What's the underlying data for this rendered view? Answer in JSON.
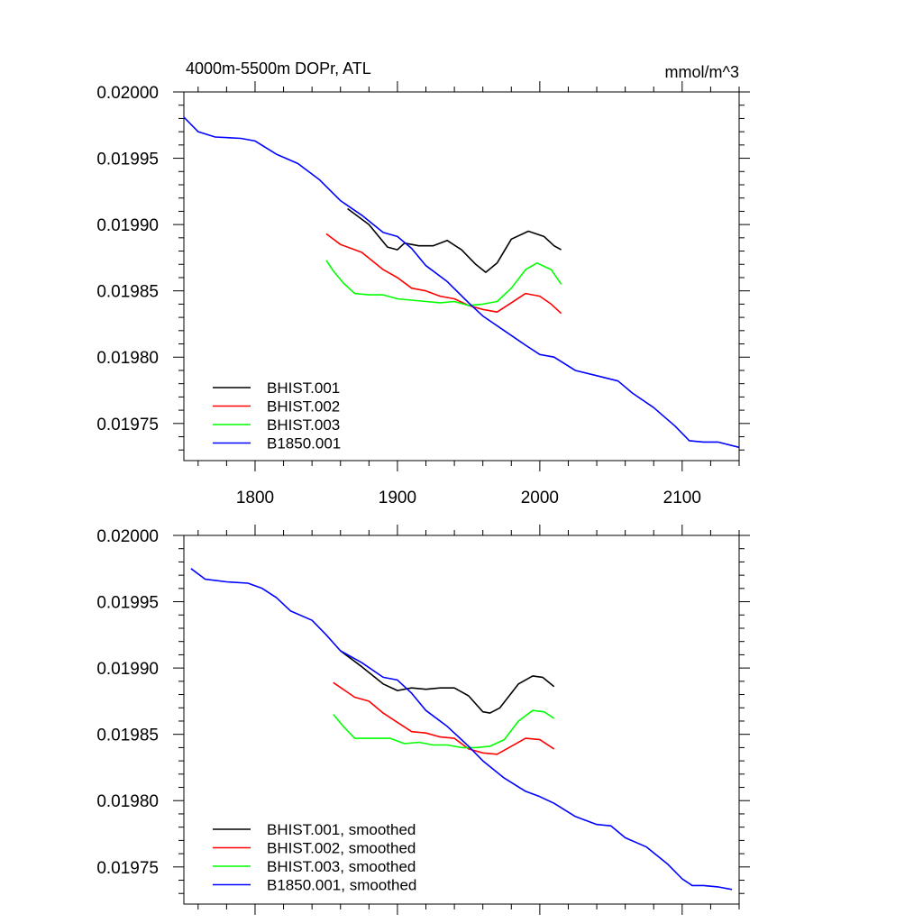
{
  "chart_data": [
    {
      "type": "line",
      "title_left": "4000m-5500m DOPr, ATL",
      "title_right": "mmol/m^3",
      "xlim": [
        1750,
        2140
      ],
      "ylim": [
        0.019722,
        0.02
      ],
      "x_ticks": [
        1800,
        1900,
        2000,
        2100
      ],
      "x_tick_labels": [
        "1800",
        "1900",
        "2000",
        "2100"
      ],
      "y_ticks": [
        0.02,
        0.01995,
        0.0199,
        0.01985,
        0.0198,
        0.01975
      ],
      "y_tick_labels": [
        "0.02000",
        "0.01995",
        "0.01990",
        "0.01985",
        "0.01980",
        "0.01975"
      ],
      "legend_position": "bottom-left",
      "series": [
        {
          "name": "BHIST.001",
          "color": "#000000",
          "points": [
            [
              1865,
              0.019912
            ],
            [
              1880,
              0.0199
            ],
            [
              1893,
              0.019883
            ],
            [
              1900,
              0.019881
            ],
            [
              1905,
              0.019886
            ],
            [
              1915,
              0.019884
            ],
            [
              1925,
              0.019884
            ],
            [
              1935,
              0.019888
            ],
            [
              1945,
              0.019881
            ],
            [
              1955,
              0.01987
            ],
            [
              1962,
              0.019864
            ],
            [
              1970,
              0.019871
            ],
            [
              1980,
              0.019889
            ],
            [
              1992,
              0.019895
            ],
            [
              2003,
              0.019891
            ],
            [
              2010,
              0.019884
            ],
            [
              2015,
              0.019881
            ]
          ]
        },
        {
          "name": "BHIST.002",
          "color": "#ff0000",
          "points": [
            [
              1850,
              0.019893
            ],
            [
              1860,
              0.019885
            ],
            [
              1875,
              0.019879
            ],
            [
              1890,
              0.019866
            ],
            [
              1900,
              0.01986
            ],
            [
              1910,
              0.019852
            ],
            [
              1920,
              0.01985
            ],
            [
              1930,
              0.019846
            ],
            [
              1940,
              0.019844
            ],
            [
              1950,
              0.019839
            ],
            [
              1960,
              0.019836
            ],
            [
              1970,
              0.019834
            ],
            [
              1980,
              0.019841
            ],
            [
              1990,
              0.019848
            ],
            [
              2000,
              0.019846
            ],
            [
              2008,
              0.01984
            ],
            [
              2015,
              0.019833
            ]
          ]
        },
        {
          "name": "BHIST.003",
          "color": "#00ff00",
          "points": [
            [
              1850,
              0.019873
            ],
            [
              1855,
              0.019865
            ],
            [
              1862,
              0.019856
            ],
            [
              1870,
              0.019848
            ],
            [
              1880,
              0.019847
            ],
            [
              1890,
              0.019847
            ],
            [
              1900,
              0.019844
            ],
            [
              1910,
              0.019843
            ],
            [
              1920,
              0.019842
            ],
            [
              1930,
              0.019841
            ],
            [
              1940,
              0.019842
            ],
            [
              1950,
              0.019839
            ],
            [
              1960,
              0.01984
            ],
            [
              1970,
              0.019842
            ],
            [
              1980,
              0.019852
            ],
            [
              1990,
              0.019866
            ],
            [
              1998,
              0.019871
            ],
            [
              2008,
              0.019866
            ],
            [
              2015,
              0.019855
            ]
          ]
        },
        {
          "name": "B1850.001",
          "color": "#0000ff",
          "points": [
            [
              1750,
              0.019981
            ],
            [
              1760,
              0.01997
            ],
            [
              1772,
              0.019966
            ],
            [
              1790,
              0.019965
            ],
            [
              1800,
              0.019963
            ],
            [
              1815,
              0.019953
            ],
            [
              1830,
              0.019946
            ],
            [
              1845,
              0.019934
            ],
            [
              1860,
              0.019918
            ],
            [
              1875,
              0.019907
            ],
            [
              1890,
              0.019894
            ],
            [
              1900,
              0.019891
            ],
            [
              1910,
              0.019882
            ],
            [
              1920,
              0.019869
            ],
            [
              1935,
              0.019857
            ],
            [
              1950,
              0.019841
            ],
            [
              1960,
              0.019831
            ],
            [
              1975,
              0.01982
            ],
            [
              1990,
              0.019809
            ],
            [
              2000,
              0.019802
            ],
            [
              2010,
              0.0198
            ],
            [
              2025,
              0.01979
            ],
            [
              2040,
              0.019786
            ],
            [
              2055,
              0.019782
            ],
            [
              2065,
              0.019773
            ],
            [
              2080,
              0.019762
            ],
            [
              2095,
              0.019748
            ],
            [
              2105,
              0.019737
            ],
            [
              2115,
              0.019736
            ],
            [
              2125,
              0.019736
            ],
            [
              2140,
              0.019732
            ]
          ]
        }
      ]
    },
    {
      "type": "line",
      "xlim": [
        1750,
        2140
      ],
      "ylim": [
        0.019722,
        0.02
      ],
      "x_ticks": [
        1800,
        1900,
        2000,
        2100
      ],
      "y_ticks": [
        0.02,
        0.01995,
        0.0199,
        0.01985,
        0.0198,
        0.01975
      ],
      "y_tick_labels": [
        "0.02000",
        "0.01995",
        "0.01990",
        "0.01985",
        "0.01980",
        "0.01975"
      ],
      "legend_position": "bottom-left",
      "series": [
        {
          "name": "BHIST.001, smoothed",
          "color": "#000000",
          "points": [
            [
              1860,
              0.019913
            ],
            [
              1875,
              0.019901
            ],
            [
              1890,
              0.019888
            ],
            [
              1900,
              0.019883
            ],
            [
              1910,
              0.019885
            ],
            [
              1920,
              0.019884
            ],
            [
              1930,
              0.019885
            ],
            [
              1940,
              0.019885
            ],
            [
              1950,
              0.019879
            ],
            [
              1960,
              0.019867
            ],
            [
              1965,
              0.019866
            ],
            [
              1972,
              0.01987
            ],
            [
              1985,
              0.019888
            ],
            [
              1995,
              0.019894
            ],
            [
              2002,
              0.019893
            ],
            [
              2010,
              0.019886
            ]
          ]
        },
        {
          "name": "BHIST.002, smoothed",
          "color": "#ff0000",
          "points": [
            [
              1855,
              0.019889
            ],
            [
              1870,
              0.019878
            ],
            [
              1880,
              0.019875
            ],
            [
              1890,
              0.019866
            ],
            [
              1900,
              0.019859
            ],
            [
              1910,
              0.019852
            ],
            [
              1920,
              0.019851
            ],
            [
              1930,
              0.019848
            ],
            [
              1940,
              0.019847
            ],
            [
              1950,
              0.019839
            ],
            [
              1960,
              0.019836
            ],
            [
              1970,
              0.019835
            ],
            [
              1980,
              0.019841
            ],
            [
              1990,
              0.019847
            ],
            [
              2000,
              0.019846
            ],
            [
              2010,
              0.019839
            ]
          ]
        },
        {
          "name": "BHIST.003, smoothed",
          "color": "#00ff00",
          "points": [
            [
              1855,
              0.019865
            ],
            [
              1862,
              0.019856
            ],
            [
              1870,
              0.019847
            ],
            [
              1880,
              0.019847
            ],
            [
              1895,
              0.019847
            ],
            [
              1905,
              0.019843
            ],
            [
              1915,
              0.019844
            ],
            [
              1925,
              0.019842
            ],
            [
              1935,
              0.019842
            ],
            [
              1945,
              0.01984
            ],
            [
              1955,
              0.01984
            ],
            [
              1965,
              0.019841
            ],
            [
              1975,
              0.019846
            ],
            [
              1985,
              0.01986
            ],
            [
              1995,
              0.019868
            ],
            [
              2003,
              0.019867
            ],
            [
              2010,
              0.019862
            ]
          ]
        },
        {
          "name": "B1850.001, smoothed",
          "color": "#0000ff",
          "points": [
            [
              1755,
              0.019975
            ],
            [
              1765,
              0.019967
            ],
            [
              1780,
              0.019965
            ],
            [
              1795,
              0.019964
            ],
            [
              1805,
              0.01996
            ],
            [
              1815,
              0.019953
            ],
            [
              1825,
              0.019943
            ],
            [
              1840,
              0.019936
            ],
            [
              1850,
              0.019925
            ],
            [
              1860,
              0.019913
            ],
            [
              1875,
              0.019904
            ],
            [
              1890,
              0.019893
            ],
            [
              1900,
              0.019891
            ],
            [
              1910,
              0.019881
            ],
            [
              1920,
              0.019868
            ],
            [
              1935,
              0.019856
            ],
            [
              1950,
              0.019841
            ],
            [
              1960,
              0.01983
            ],
            [
              1975,
              0.019817
            ],
            [
              1990,
              0.019807
            ],
            [
              2000,
              0.019803
            ],
            [
              2010,
              0.019798
            ],
            [
              2025,
              0.019788
            ],
            [
              2040,
              0.019782
            ],
            [
              2050,
              0.019781
            ],
            [
              2060,
              0.019772
            ],
            [
              2075,
              0.019765
            ],
            [
              2090,
              0.019752
            ],
            [
              2100,
              0.019741
            ],
            [
              2107,
              0.019736
            ],
            [
              2115,
              0.019736
            ],
            [
              2125,
              0.019735
            ],
            [
              2135,
              0.019733
            ]
          ]
        }
      ]
    }
  ]
}
